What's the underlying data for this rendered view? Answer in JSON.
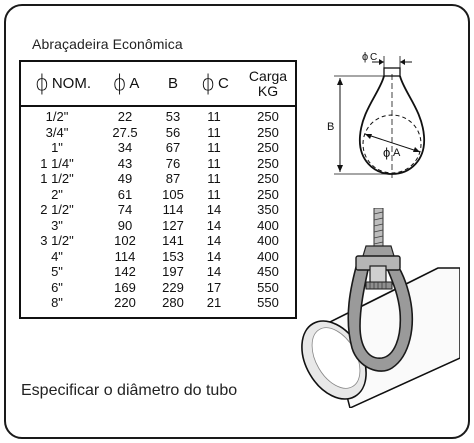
{
  "title": "Abraçadeira Econômica",
  "table": {
    "headers": {
      "nom": "NOM.",
      "a": "A",
      "b": "B",
      "c": "C",
      "carga_line1": "Carga",
      "carga_line2": "KG"
    },
    "rows": [
      [
        "1/2\"",
        "22",
        "53",
        "11",
        "250"
      ],
      [
        "3/4\"",
        "27.5",
        "56",
        "11",
        "250"
      ],
      [
        "1\"",
        "34",
        "67",
        "11",
        "250"
      ],
      [
        "1 1/4\"",
        "43",
        "76",
        "11",
        "250"
      ],
      [
        "1 1/2\"",
        "49",
        "87",
        "11",
        "250"
      ],
      [
        "2\"",
        "61",
        "105",
        "11",
        "250"
      ],
      [
        "2 1/2\"",
        "74",
        "114",
        "14",
        "350"
      ],
      [
        "3\"",
        "90",
        "127",
        "14",
        "400"
      ],
      [
        "3 1/2\"",
        "102",
        "141",
        "14",
        "400"
      ],
      [
        "4\"",
        "114",
        "153",
        "14",
        "400"
      ],
      [
        "5\"",
        "142",
        "197",
        "14",
        "450"
      ],
      [
        "6\"",
        "169",
        "229",
        "17",
        "550"
      ],
      [
        "8\"",
        "220",
        "280",
        "21",
        "550"
      ]
    ]
  },
  "diagram": {
    "label_c": "C",
    "label_b": "B",
    "label_a": "A",
    "phi_symbol": "ϕ"
  },
  "footer": "Especificar o diâmetro do tubo"
}
